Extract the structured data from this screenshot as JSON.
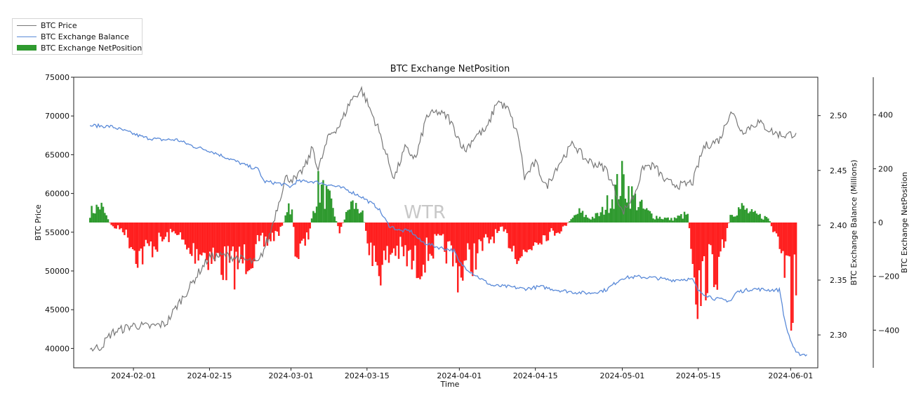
{
  "legend": {
    "items": [
      {
        "label": "BTC Price",
        "color": "#777777",
        "kind": "line"
      },
      {
        "label": "BTC Exchange Balance",
        "color": "#5a8ad8",
        "kind": "line"
      },
      {
        "label": "BTC Exchange NetPosition",
        "color": "#2f9a2f",
        "kind": "patch"
      }
    ]
  },
  "watermark": "WTR",
  "chart_data": {
    "type": "line",
    "title": "BTC Exchange NetPosition",
    "xlabel": "Time",
    "x_range": [
      "2024-01-21",
      "2024-06-06"
    ],
    "x_ticks": [
      "2024-02-01",
      "2024-02-15",
      "2024-03-01",
      "2024-03-15",
      "2024-04-01",
      "2024-04-15",
      "2024-05-01",
      "2024-05-15",
      "2024-06-01"
    ],
    "axes": {
      "price": {
        "label": "BTC Price",
        "range": [
          37500,
          75000
        ],
        "ticks": [
          40000,
          45000,
          50000,
          55000,
          60000,
          65000,
          70000,
          75000
        ]
      },
      "balance": {
        "label": "BTC Exchange Balance (Millions)",
        "range": [
          2.27,
          2.535
        ],
        "ticks": [
          2.3,
          2.35,
          2.4,
          2.45,
          2.5
        ]
      },
      "netposition": {
        "label": "BTC Exchange NetPosition",
        "range": [
          -540,
          540
        ],
        "ticks": [
          -400,
          -200,
          0,
          200,
          400
        ]
      }
    },
    "series": [
      {
        "name": "BTC Price",
        "axis": "price",
        "color": "#777777",
        "points": [
          [
            "2024-01-24",
            39900
          ],
          [
            "2024-01-26",
            40200
          ],
          [
            "2024-01-28",
            42000
          ],
          [
            "2024-02-01",
            43000
          ],
          [
            "2024-02-04",
            42800
          ],
          [
            "2024-02-07",
            43200
          ],
          [
            "2024-02-09",
            45500
          ],
          [
            "2024-02-11",
            47500
          ],
          [
            "2024-02-13",
            49800
          ],
          [
            "2024-02-15",
            51800
          ],
          [
            "2024-02-18",
            52000
          ],
          [
            "2024-02-21",
            51500
          ],
          [
            "2024-02-24",
            51000
          ],
          [
            "2024-02-26",
            54500
          ],
          [
            "2024-02-28",
            59500
          ],
          [
            "2024-02-29",
            62000
          ],
          [
            "2024-03-02",
            61800
          ],
          [
            "2024-03-04",
            64000
          ],
          [
            "2024-03-05",
            66000
          ],
          [
            "2024-03-06",
            63000
          ],
          [
            "2024-03-08",
            67500
          ],
          [
            "2024-03-10",
            68800
          ],
          [
            "2024-03-12",
            72000
          ],
          [
            "2024-03-14",
            73400
          ],
          [
            "2024-03-17",
            68500
          ],
          [
            "2024-03-19",
            64000
          ],
          [
            "2024-03-20",
            62000
          ],
          [
            "2024-03-22",
            65800
          ],
          [
            "2024-03-24",
            64500
          ],
          [
            "2024-03-26",
            70000
          ],
          [
            "2024-03-28",
            70500
          ],
          [
            "2024-03-30",
            69800
          ],
          [
            "2024-04-02",
            65500
          ],
          [
            "2024-04-04",
            67500
          ],
          [
            "2024-04-06",
            68200
          ],
          [
            "2024-04-08",
            72000
          ],
          [
            "2024-04-10",
            70800
          ],
          [
            "2024-04-12",
            67000
          ],
          [
            "2024-04-13",
            62000
          ],
          [
            "2024-04-15",
            64000
          ],
          [
            "2024-04-17",
            60800
          ],
          [
            "2024-04-19",
            63500
          ],
          [
            "2024-04-22",
            66500
          ],
          [
            "2024-04-24",
            64500
          ],
          [
            "2024-04-26",
            63800
          ],
          [
            "2024-04-28",
            63200
          ],
          [
            "2024-04-30",
            59800
          ],
          [
            "2024-05-01",
            57500
          ],
          [
            "2024-05-03",
            59500
          ],
          [
            "2024-05-05",
            63500
          ],
          [
            "2024-05-07",
            63500
          ],
          [
            "2024-05-09",
            61500
          ],
          [
            "2024-05-12",
            61000
          ],
          [
            "2024-05-14",
            61500
          ],
          [
            "2024-05-16",
            66000
          ],
          [
            "2024-05-19",
            67000
          ],
          [
            "2024-05-21",
            70800
          ],
          [
            "2024-05-23",
            68000
          ],
          [
            "2024-05-26",
            69200
          ],
          [
            "2024-05-29",
            67800
          ],
          [
            "2024-05-31",
            67500
          ],
          [
            "2024-06-02",
            67800
          ]
        ]
      },
      {
        "name": "BTC Exchange Balance",
        "axis": "balance",
        "color": "#5a8ad8",
        "points": [
          [
            "2024-01-24",
            2.491
          ],
          [
            "2024-01-28",
            2.49
          ],
          [
            "2024-01-31",
            2.485
          ],
          [
            "2024-02-03",
            2.48
          ],
          [
            "2024-02-06",
            2.478
          ],
          [
            "2024-02-09",
            2.478
          ],
          [
            "2024-02-12",
            2.472
          ],
          [
            "2024-02-15",
            2.468
          ],
          [
            "2024-02-18",
            2.462
          ],
          [
            "2024-02-22",
            2.454
          ],
          [
            "2024-02-24",
            2.451
          ],
          [
            "2024-02-25",
            2.44
          ],
          [
            "2024-02-28",
            2.438
          ],
          [
            "2024-03-01",
            2.435
          ],
          [
            "2024-03-02",
            2.44
          ],
          [
            "2024-03-05",
            2.44
          ],
          [
            "2024-03-08",
            2.437
          ],
          [
            "2024-03-11",
            2.433
          ],
          [
            "2024-03-14",
            2.426
          ],
          [
            "2024-03-17",
            2.416
          ],
          [
            "2024-03-19",
            2.4
          ],
          [
            "2024-03-21",
            2.395
          ],
          [
            "2024-03-23",
            2.395
          ],
          [
            "2024-03-25",
            2.385
          ],
          [
            "2024-03-28",
            2.38
          ],
          [
            "2024-03-31",
            2.377
          ],
          [
            "2024-04-01",
            2.366
          ],
          [
            "2024-04-03",
            2.358
          ],
          [
            "2024-04-05",
            2.351
          ],
          [
            "2024-04-07",
            2.345
          ],
          [
            "2024-04-10",
            2.344
          ],
          [
            "2024-04-13",
            2.342
          ],
          [
            "2024-04-16",
            2.344
          ],
          [
            "2024-04-19",
            2.341
          ],
          [
            "2024-04-22",
            2.339
          ],
          [
            "2024-04-25",
            2.338
          ],
          [
            "2024-04-28",
            2.341
          ],
          [
            "2024-05-01",
            2.352
          ],
          [
            "2024-05-04",
            2.353
          ],
          [
            "2024-05-07",
            2.352
          ],
          [
            "2024-05-10",
            2.35
          ],
          [
            "2024-05-13",
            2.351
          ],
          [
            "2024-05-14",
            2.35
          ],
          [
            "2024-05-15",
            2.34
          ],
          [
            "2024-05-18",
            2.333
          ],
          [
            "2024-05-21",
            2.331
          ],
          [
            "2024-05-22",
            2.339
          ],
          [
            "2024-05-25",
            2.342
          ],
          [
            "2024-05-28",
            2.341
          ],
          [
            "2024-05-30",
            2.341
          ],
          [
            "2024-05-31",
            2.31
          ],
          [
            "2024-06-01",
            2.295
          ],
          [
            "2024-06-02",
            2.283
          ],
          [
            "2024-06-04",
            2.282
          ]
        ]
      },
      {
        "name": "BTC Exchange NetPosition",
        "axis": "netposition",
        "kind": "bar",
        "color_positive": "#2f9a2f",
        "color_negative": "#ff1f1f",
        "points": [
          [
            "2024-01-24",
            50
          ],
          [
            "2024-01-26",
            80
          ],
          [
            "2024-01-28",
            -20
          ],
          [
            "2024-01-30",
            -30
          ],
          [
            "2024-02-02",
            -160
          ],
          [
            "2024-02-04",
            -120
          ],
          [
            "2024-02-06",
            -90
          ],
          [
            "2024-02-09",
            -40
          ],
          [
            "2024-02-11",
            -150
          ],
          [
            "2024-02-13",
            -130
          ],
          [
            "2024-02-16",
            -170
          ],
          [
            "2024-02-19",
            -220
          ],
          [
            "2024-02-21",
            -180
          ],
          [
            "2024-02-23",
            -150
          ],
          [
            "2024-02-26",
            -80
          ],
          [
            "2024-02-28",
            -40
          ],
          [
            "2024-03-01",
            90
          ],
          [
            "2024-03-02",
            -160
          ],
          [
            "2024-03-04",
            -90
          ],
          [
            "2024-03-06",
            170
          ],
          [
            "2024-03-08",
            110
          ],
          [
            "2024-03-10",
            -40
          ],
          [
            "2024-03-12",
            90
          ],
          [
            "2024-03-14",
            60
          ],
          [
            "2024-03-16",
            -180
          ],
          [
            "2024-03-18",
            -210
          ],
          [
            "2024-03-20",
            -120
          ],
          [
            "2024-03-22",
            -160
          ],
          [
            "2024-03-24",
            -210
          ],
          [
            "2024-03-26",
            -150
          ],
          [
            "2024-03-28",
            -100
          ],
          [
            "2024-03-30",
            -140
          ],
          [
            "2024-04-01",
            -230
          ],
          [
            "2024-04-03",
            -180
          ],
          [
            "2024-04-05",
            -130
          ],
          [
            "2024-04-07",
            -70
          ],
          [
            "2024-04-09",
            -40
          ],
          [
            "2024-04-11",
            -120
          ],
          [
            "2024-04-13",
            -160
          ],
          [
            "2024-04-15",
            -80
          ],
          [
            "2024-04-17",
            -60
          ],
          [
            "2024-04-20",
            -30
          ],
          [
            "2024-04-23",
            50
          ],
          [
            "2024-04-25",
            20
          ],
          [
            "2024-04-27",
            40
          ],
          [
            "2024-04-29",
            120
          ],
          [
            "2024-05-01",
            200
          ],
          [
            "2024-05-03",
            120
          ],
          [
            "2024-05-05",
            60
          ],
          [
            "2024-05-07",
            30
          ],
          [
            "2024-05-10",
            15
          ],
          [
            "2024-05-13",
            40
          ],
          [
            "2024-05-15",
            -360
          ],
          [
            "2024-05-17",
            -200
          ],
          [
            "2024-05-19",
            -220
          ],
          [
            "2024-05-21",
            50
          ],
          [
            "2024-05-23",
            70
          ],
          [
            "2024-05-25",
            40
          ],
          [
            "2024-05-28",
            20
          ],
          [
            "2024-05-31",
            -240
          ],
          [
            "2024-06-01",
            -390
          ],
          [
            "2024-06-02",
            -270
          ]
        ]
      }
    ],
    "grid": false,
    "legend_position": "top-left outside"
  }
}
